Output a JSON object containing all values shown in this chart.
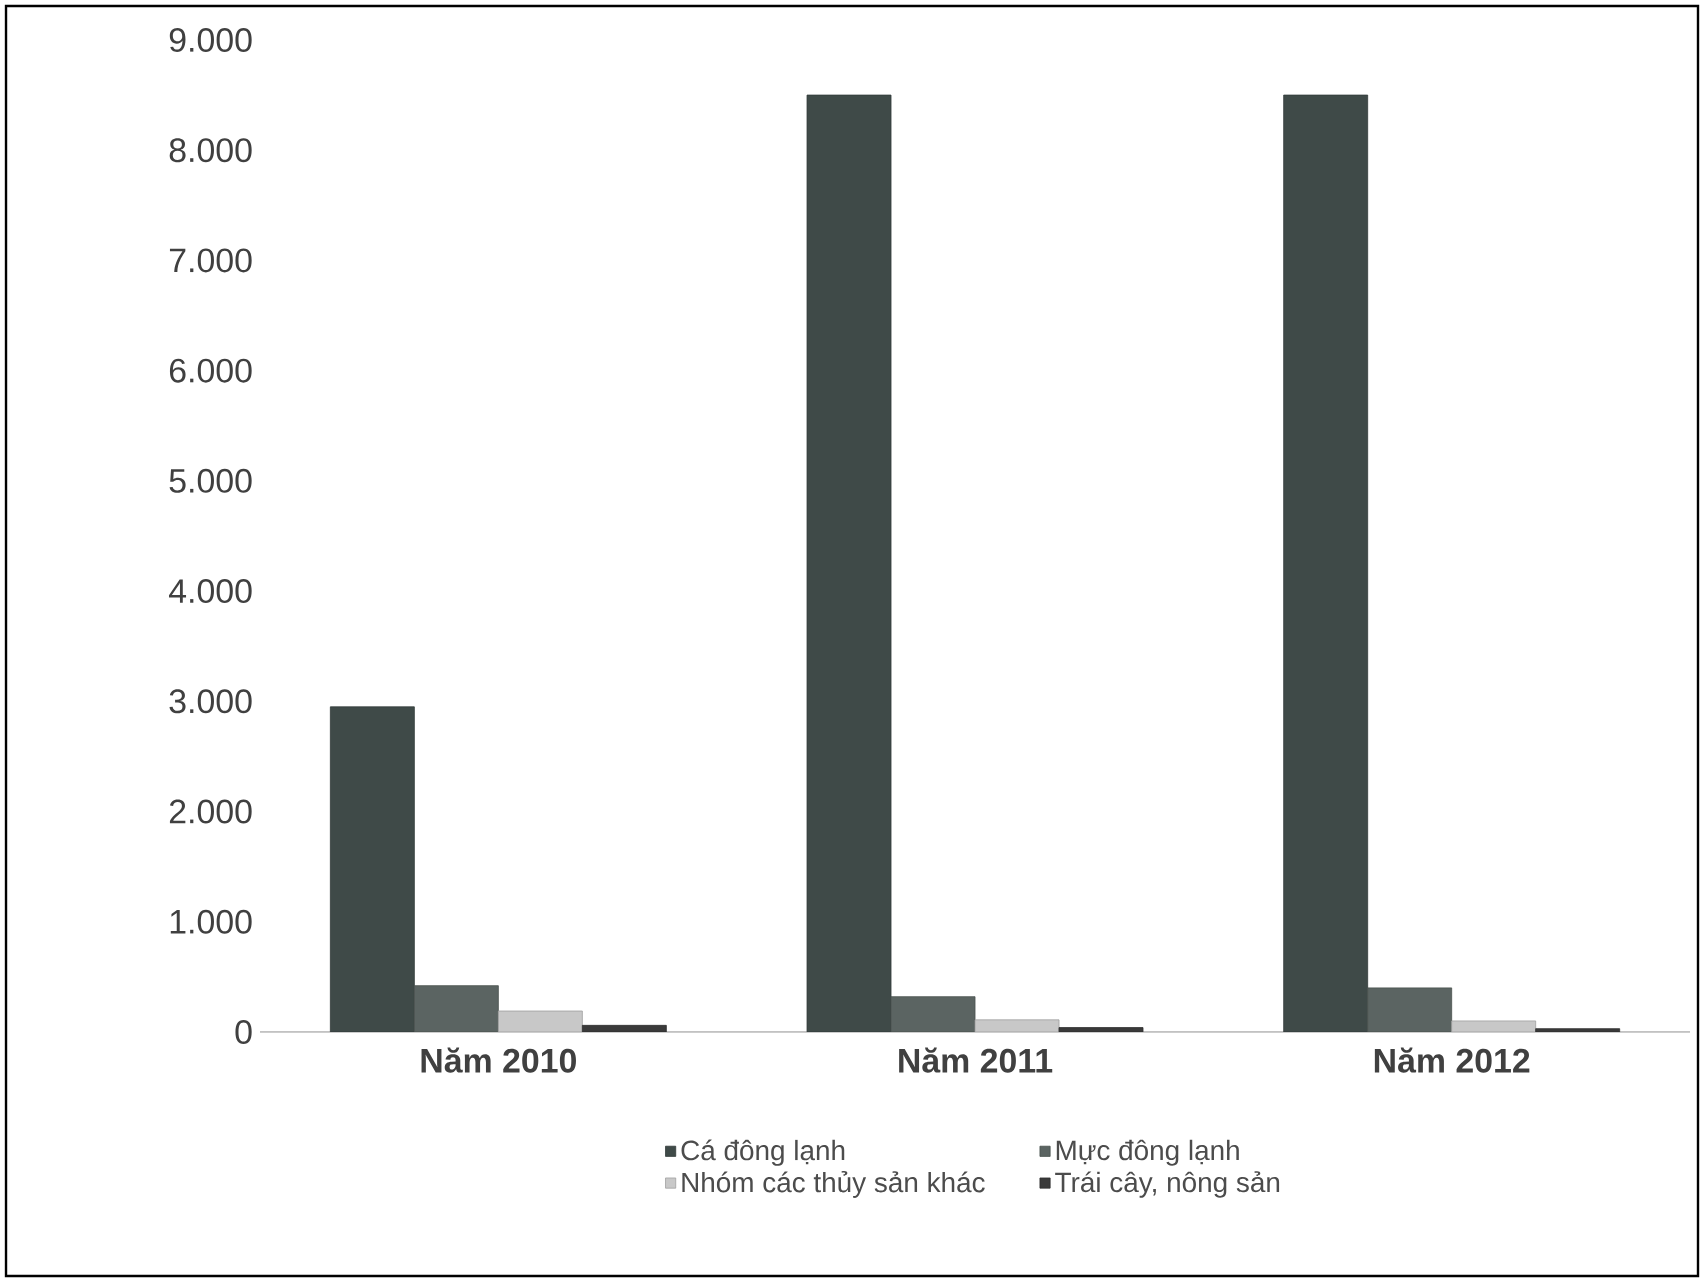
{
  "chart_data": {
    "type": "bar",
    "categories": [
      "Năm 2010",
      "Năm 2011",
      "Năm 2012"
    ],
    "series": [
      {
        "name": "Cá đông lạnh",
        "color": "#3f4a48",
        "values": [
          2950,
          8500,
          8500
        ]
      },
      {
        "name": "Mực đông lạnh",
        "color": "#5b6462",
        "values": [
          420,
          320,
          400
        ]
      },
      {
        "name": "Nhóm các thủy sản khác",
        "color": "#c8c8c8",
        "values": [
          190,
          110,
          100
        ]
      },
      {
        "name": "Trái cây, nông sản",
        "color": "#3a3a3a",
        "values": [
          60,
          40,
          30
        ]
      }
    ],
    "ylim": [
      0,
      9000
    ],
    "yticks": [
      {
        "value": 0,
        "label": "0"
      },
      {
        "value": 1000,
        "label": "1.000"
      },
      {
        "value": 2000,
        "label": "2.000"
      },
      {
        "value": 3000,
        "label": "3.000"
      },
      {
        "value": 4000,
        "label": "4.000"
      },
      {
        "value": 5000,
        "label": "5.000"
      },
      {
        "value": 6000,
        "label": "6.000"
      },
      {
        "value": 7000,
        "label": "7.000"
      },
      {
        "value": 8000,
        "label": "8.000"
      },
      {
        "value": 9000,
        "label": "9.000"
      }
    ],
    "grid": false,
    "legend": "bottom"
  }
}
